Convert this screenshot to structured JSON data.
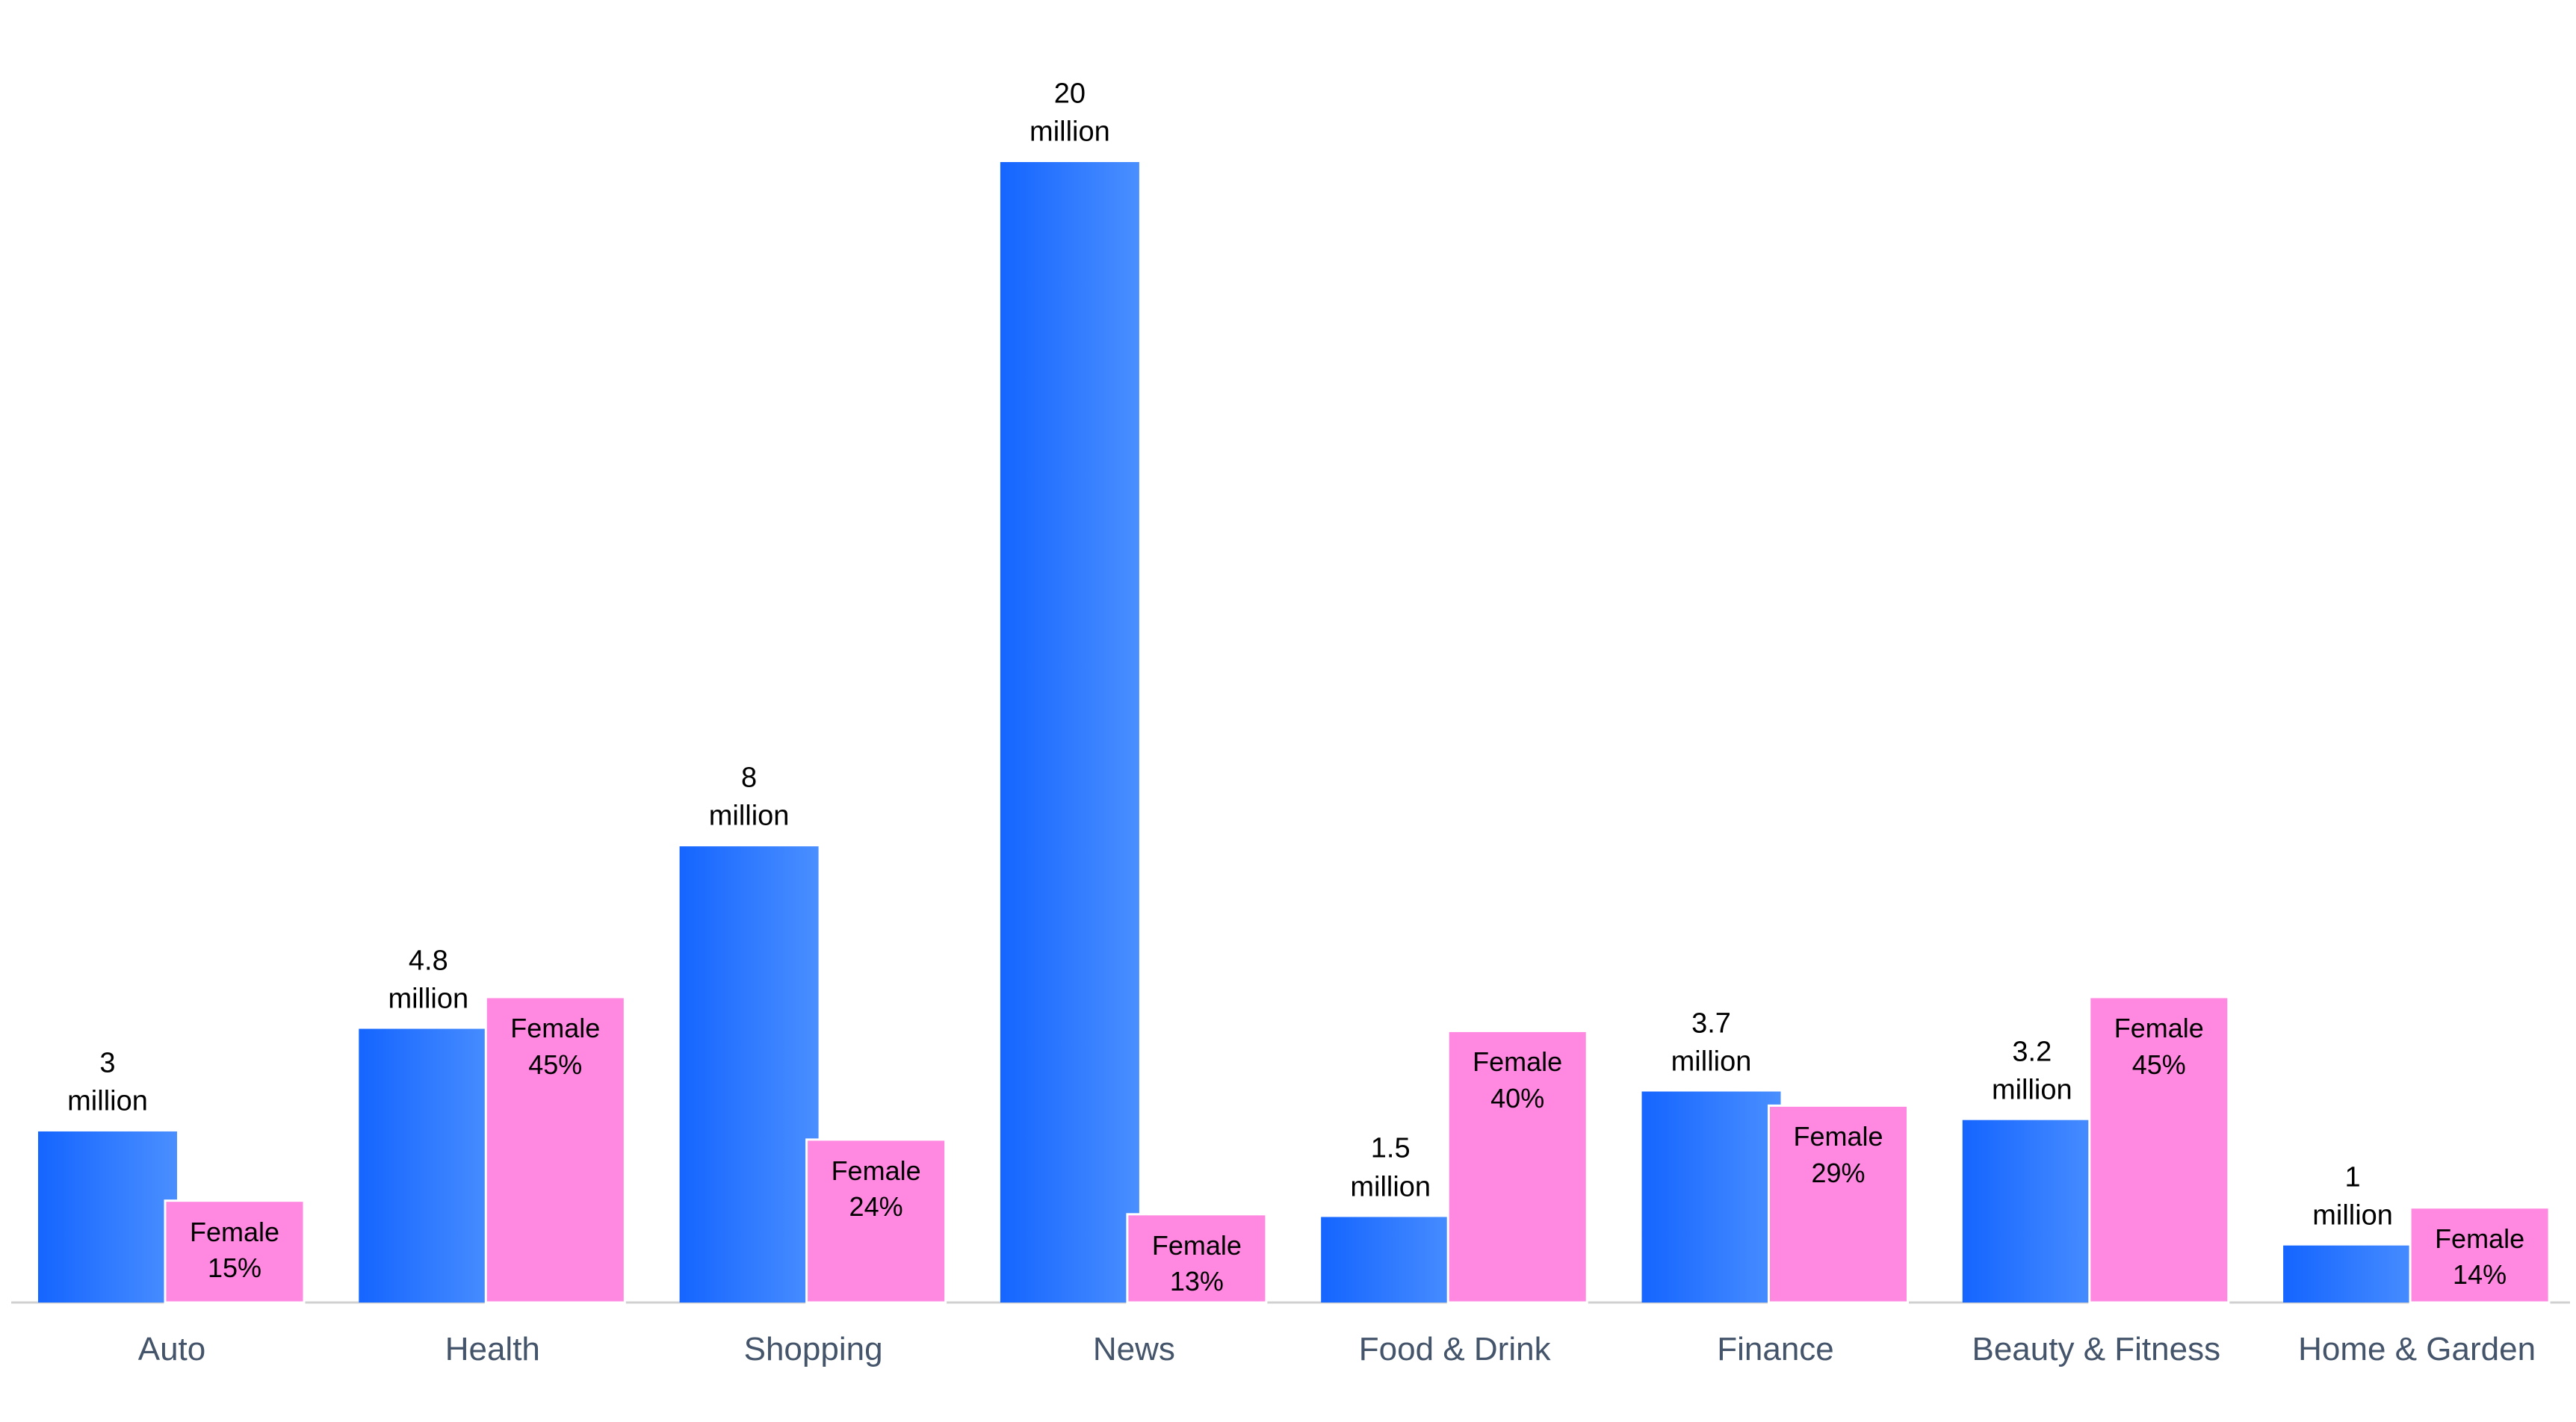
{
  "chart_data": {
    "type": "bar",
    "categories": [
      "Auto",
      "Health",
      "Shopping",
      "News",
      "Food & Drink",
      "Finance",
      "Beauty & Fitness",
      "Home & Garden"
    ],
    "series": [
      {
        "color": "#1a66ff",
        "values": [
          3,
          4.8,
          8,
          20,
          1.5,
          3.7,
          3.2,
          1
        ],
        "value_labels": [
          "3 million",
          "4.8 million",
          "8 million",
          "20 million",
          "1.5 million",
          "3.7 million",
          "3.2 million",
          "1 million"
        ]
      },
      {
        "color": "#ff88e0",
        "axis": "y2",
        "values": [
          15,
          45,
          24,
          13,
          40,
          29,
          45,
          14
        ],
        "value_labels": [
          "Female 15%",
          "Female 45%",
          "Female 24%",
          "Female 13%",
          "Female 40%",
          "Female 29%",
          "Female 45%",
          "Female 14%"
        ]
      }
    ],
    "ylim": [
      0,
      20
    ],
    "y2lim": [
      0,
      168
    ]
  }
}
